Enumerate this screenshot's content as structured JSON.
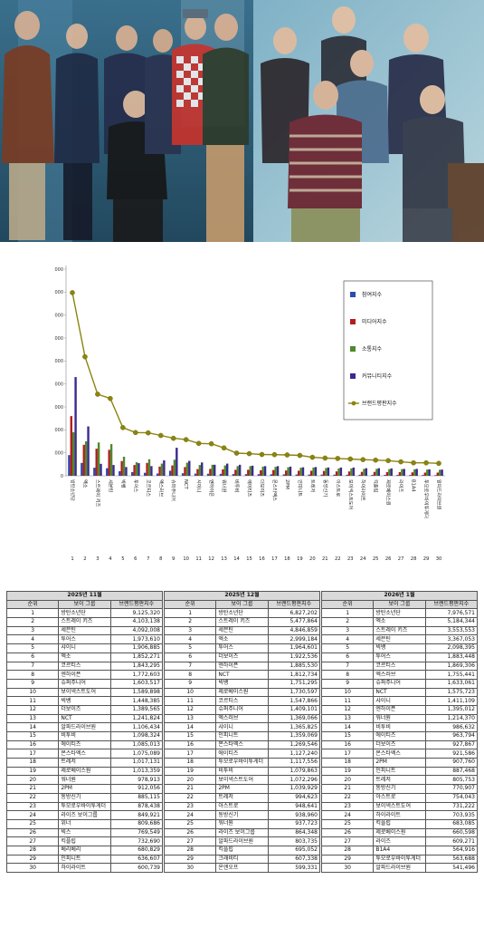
{
  "chart_data": {
    "type": "bar",
    "categories": [
      "방탄소년단",
      "엑소",
      "스트레이 키즈",
      "세븐틴",
      "빅뱅",
      "투어스",
      "코르티스",
      "엑스러브",
      "슈퍼주니어",
      "NCT",
      "샤이니",
      "엔하이픈",
      "워너원",
      "비투비",
      "에이티즈",
      "더보이즈",
      "몬스타엑스",
      "2PM",
      "인피니트",
      "트레저",
      "동방신기",
      "아스트로",
      "보이넥스트도어",
      "하이라이트",
      "킥플립",
      "제로베이스원",
      "라이즈",
      "B1A4",
      "투모로우바이투게더",
      "알파드라이브원"
    ],
    "x_ticks": [
      "1",
      "2",
      "3",
      "4",
      "5",
      "6",
      "7",
      "8",
      "9",
      "10",
      "11",
      "12",
      "13",
      "14",
      "15",
      "16",
      "17",
      "18",
      "19",
      "20",
      "21",
      "22",
      "23",
      "24",
      "25",
      "26",
      "27",
      "28",
      "29",
      "30"
    ],
    "series": [
      {
        "name": "참여지수",
        "color": "#2e4bb0",
        "values": [
          900000,
          560000,
          350000,
          330000,
          200000,
          160000,
          130000,
          100000,
          220000,
          110000,
          95000,
          90000,
          85000,
          75000,
          70000,
          70000,
          65000,
          60000,
          55000,
          55000,
          50000,
          50000,
          45000,
          45000,
          40000,
          40000,
          40000,
          35000,
          35000,
          30000
        ]
      },
      {
        "name": "미디어지수",
        "color": "#b21d1d",
        "values": [
          2600000,
          1350000,
          1180000,
          1130000,
          640000,
          470000,
          560000,
          400000,
          450000,
          380000,
          290000,
          300000,
          280000,
          260000,
          260000,
          240000,
          250000,
          230000,
          220000,
          220000,
          210000,
          190000,
          190000,
          170000,
          170000,
          160000,
          160000,
          150000,
          140000,
          140000
        ]
      },
      {
        "name": "소통지수",
        "color": "#4e8a2a",
        "values": [
          1900000,
          1500000,
          1450000,
          1380000,
          830000,
          590000,
          720000,
          530000,
          700000,
          570000,
          470000,
          480000,
          450000,
          420000,
          420000,
          400000,
          390000,
          370000,
          350000,
          360000,
          340000,
          320000,
          320000,
          300000,
          300000,
          290000,
          290000,
          280000,
          270000,
          260000
        ]
      },
      {
        "name": "커뮤니티지수",
        "color": "#3a2a8e",
        "values": [
          4300000,
          2150000,
          520000,
          470000,
          380000,
          550000,
          420000,
          670000,
          1220000,
          650000,
          580000,
          480000,
          530000,
          480000,
          440000,
          420000,
          420000,
          400000,
          370000,
          380000,
          360000,
          360000,
          360000,
          330000,
          330000,
          320000,
          300000,
          300000,
          280000,
          270000
        ]
      },
      {
        "name": "브랜드평판지수",
        "color": "#8b8410",
        "values": [
          7976571,
          5184344,
          3553553,
          3367053,
          2098395,
          1883448,
          1869306,
          1755441,
          1633061,
          1575723,
          1411109,
          1395012,
          1214370,
          986632,
          963794,
          927867,
          921586,
          907760,
          887468,
          805753,
          770907,
          754043,
          731222,
          703935,
          683085,
          660598,
          609271,
          564916,
          563688,
          541496
        ]
      }
    ],
    "ylim": [
      0,
      9000000
    ],
    "y_ticks": [
      "0",
      "1,000,000",
      "2,000,000",
      "3,000,000",
      "4,000,000",
      "5,000,000",
      "6,000,000",
      "7,000,000",
      "8,000,000",
      "9,000,000"
    ],
    "legend_position": "top-right",
    "grid": false
  },
  "tables": [
    {
      "month": "2025년 11월",
      "cols": [
        "순위",
        "보이 그룹",
        "브랜드평판지수"
      ],
      "rows": [
        [
          "1",
          "방탄소년단",
          "9,125,320"
        ],
        [
          "2",
          "스트레이 키즈",
          "4,103,138"
        ],
        [
          "3",
          "세븐틴",
          "4,092,008"
        ],
        [
          "4",
          "투어스",
          "1,973,610"
        ],
        [
          "5",
          "샤이니",
          "1,906,885"
        ],
        [
          "6",
          "엑소",
          "1,852,271"
        ],
        [
          "7",
          "코르티스",
          "1,843,295"
        ],
        [
          "8",
          "엔하이픈",
          "1,772,603"
        ],
        [
          "9",
          "슈퍼주니어",
          "1,603,517"
        ],
        [
          "10",
          "보이넥스트도어",
          "1,589,898"
        ],
        [
          "11",
          "빅뱅",
          "1,448,385"
        ],
        [
          "12",
          "더보이즈",
          "1,389,565"
        ],
        [
          "13",
          "NCT",
          "1,241,824"
        ],
        [
          "14",
          "알파드라이브원",
          "1,106,434"
        ],
        [
          "15",
          "비투비",
          "1,098,324"
        ],
        [
          "16",
          "에이티즈",
          "1,085,013"
        ],
        [
          "17",
          "몬스타엑스",
          "1,075,089"
        ],
        [
          "18",
          "트레저",
          "1,017,131"
        ],
        [
          "19",
          "제로베이스원",
          "1,013,359"
        ],
        [
          "20",
          "워너원",
          "978,913"
        ],
        [
          "21",
          "2PM",
          "912,056"
        ],
        [
          "22",
          "동방신기",
          "885,115"
        ],
        [
          "23",
          "투모로우바이투게더",
          "878,438"
        ],
        [
          "24",
          "라이즈 보이그룹",
          "849,921"
        ],
        [
          "25",
          "위너",
          "809,686"
        ],
        [
          "26",
          "빅스",
          "769,549"
        ],
        [
          "27",
          "킥플립",
          "732,690"
        ],
        [
          "28",
          "베리베리",
          "680,829"
        ],
        [
          "29",
          "인피니트",
          "636,607"
        ],
        [
          "30",
          "하이라이트",
          "600,739"
        ]
      ]
    },
    {
      "month": "2025년 12월",
      "cols": [
        "순위",
        "보이 그룹",
        "브랜드평판지수"
      ],
      "rows": [
        [
          "1",
          "방탄소년단",
          "6,827,202"
        ],
        [
          "2",
          "스트레이 키즈",
          "5,477,864"
        ],
        [
          "3",
          "세븐틴",
          "4,846,859"
        ],
        [
          "4",
          "엑소",
          "2,999,184"
        ],
        [
          "5",
          "투어스",
          "1,964,601"
        ],
        [
          "6",
          "더보이즈",
          "1,922,536"
        ],
        [
          "7",
          "엔하이픈",
          "1,885,530"
        ],
        [
          "8",
          "NCT",
          "1,812,734"
        ],
        [
          "9",
          "빅뱅",
          "1,751,295"
        ],
        [
          "10",
          "제로베이스원",
          "1,730,597"
        ],
        [
          "11",
          "코르티스",
          "1,547,866"
        ],
        [
          "12",
          "슈퍼주니어",
          "1,409,101"
        ],
        [
          "13",
          "엑스러브",
          "1,369,066"
        ],
        [
          "14",
          "샤이니",
          "1,365,825"
        ],
        [
          "15",
          "인피니트",
          "1,359,069"
        ],
        [
          "16",
          "몬스타엑스",
          "1,269,546"
        ],
        [
          "17",
          "에이티즈",
          "1,127,240"
        ],
        [
          "18",
          "투모로우바이투게더",
          "1,117,556"
        ],
        [
          "19",
          "비투비",
          "1,079,863"
        ],
        [
          "20",
          "보이넥스트도어",
          "1,072,296"
        ],
        [
          "21",
          "2PM",
          "1,039,929"
        ],
        [
          "22",
          "트레저",
          "994,623"
        ],
        [
          "23",
          "아스트로",
          "948,641"
        ],
        [
          "24",
          "동방신기",
          "938,960"
        ],
        [
          "25",
          "워너원",
          "937,723"
        ],
        [
          "26",
          "라이즈 보이그룹",
          "864,348"
        ],
        [
          "27",
          "알파드라이브원",
          "803,735"
        ],
        [
          "28",
          "킥플립",
          "695,052"
        ],
        [
          "29",
          "크래비티",
          "607,338"
        ],
        [
          "30",
          "온앤오프",
          "599,331"
        ]
      ]
    },
    {
      "month": "2026년 1월",
      "cols": [
        "순위",
        "보이 그룹",
        "브랜드평판지수"
      ],
      "rows": [
        [
          "1",
          "방탄소년단",
          "7,976,571"
        ],
        [
          "2",
          "엑소",
          "5,184,344"
        ],
        [
          "3",
          "스트레이 키즈",
          "3,553,553"
        ],
        [
          "4",
          "세븐틴",
          "3,367,053"
        ],
        [
          "5",
          "빅뱅",
          "2,098,395"
        ],
        [
          "6",
          "투어스",
          "1,883,448"
        ],
        [
          "7",
          "코르티스",
          "1,869,306"
        ],
        [
          "8",
          "엑스러브",
          "1,755,441"
        ],
        [
          "9",
          "슈퍼주니어",
          "1,633,061"
        ],
        [
          "10",
          "NCT",
          "1,575,723"
        ],
        [
          "11",
          "샤이니",
          "1,411,109"
        ],
        [
          "12",
          "엔하이픈",
          "1,395,012"
        ],
        [
          "13",
          "워너원",
          "1,214,370"
        ],
        [
          "14",
          "비투비",
          "986,632"
        ],
        [
          "15",
          "에이티즈",
          "963,794"
        ],
        [
          "16",
          "더보이즈",
          "927,867"
        ],
        [
          "17",
          "몬스타엑스",
          "921,586"
        ],
        [
          "18",
          "2PM",
          "907,760"
        ],
        [
          "19",
          "인피니트",
          "887,468"
        ],
        [
          "20",
          "트레저",
          "805,753"
        ],
        [
          "21",
          "동방신기",
          "770,907"
        ],
        [
          "22",
          "아스트로",
          "754,043"
        ],
        [
          "23",
          "보이넥스트도어",
          "731,222"
        ],
        [
          "24",
          "하이라이트",
          "703,935"
        ],
        [
          "25",
          "킥플립",
          "683,085"
        ],
        [
          "26",
          "제로베이스원",
          "660,598"
        ],
        [
          "27",
          "라이즈",
          "609,271"
        ],
        [
          "28",
          "B1A4",
          "564,916"
        ],
        [
          "29",
          "투모로우바이투게더",
          "563,688"
        ],
        [
          "30",
          "알파드라이브원",
          "541,496"
        ]
      ]
    }
  ]
}
